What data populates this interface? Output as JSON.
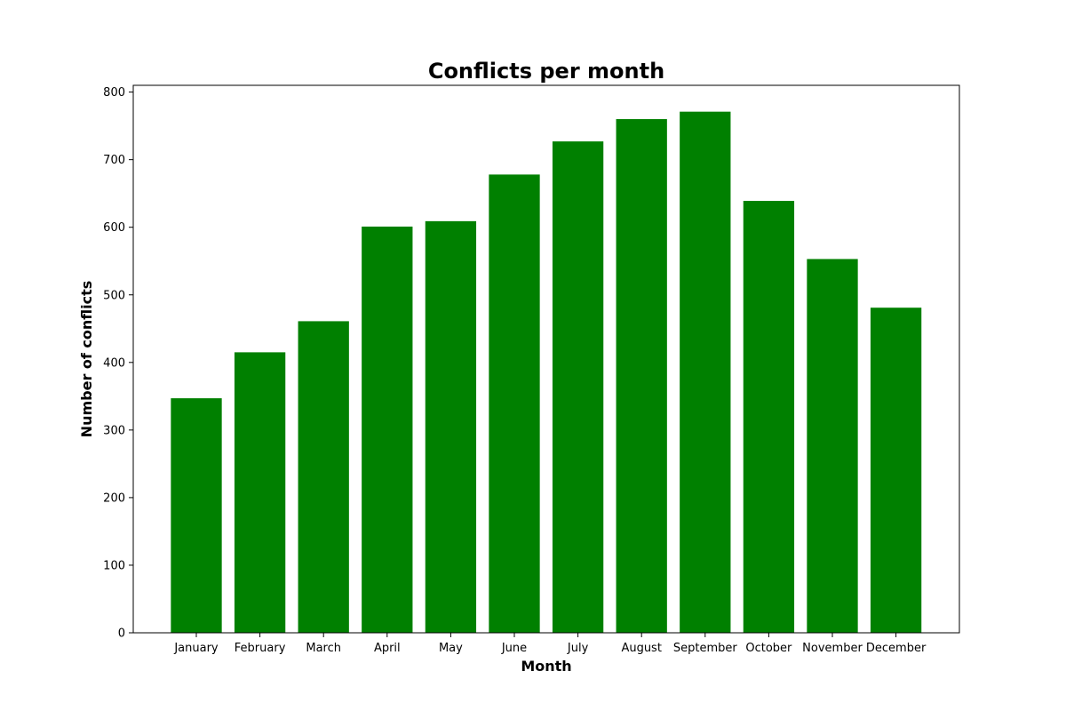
{
  "chart_data": {
    "type": "bar",
    "title": "Conflicts per month",
    "xlabel": "Month",
    "ylabel": "Number of conflicts",
    "categories": [
      "January",
      "February",
      "March",
      "April",
      "May",
      "June",
      "July",
      "August",
      "September",
      "October",
      "November",
      "December"
    ],
    "values": [
      347,
      415,
      461,
      601,
      609,
      678,
      727,
      760,
      771,
      639,
      553,
      481
    ],
    "ylim": [
      0,
      810
    ],
    "yticks": [
      0,
      100,
      200,
      300,
      400,
      500,
      600,
      700,
      800
    ],
    "grid": false,
    "legend": false,
    "bar_color": "#008000"
  }
}
